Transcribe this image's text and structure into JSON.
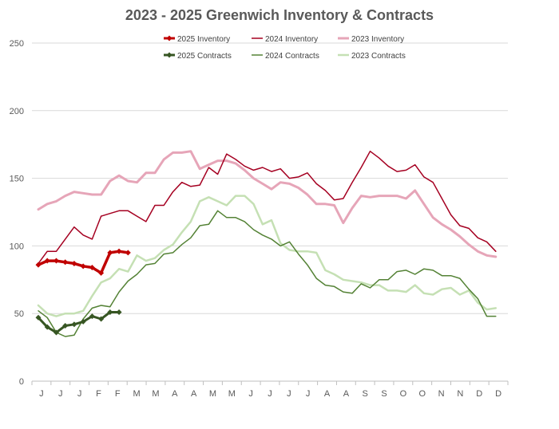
{
  "chart_data": {
    "type": "line",
    "title": "2023 - 2025 Greenwich Inventory & Contracts",
    "xlabel": "",
    "ylabel": "",
    "ylim": [
      0,
      250
    ],
    "yticks": [
      0,
      50,
      100,
      150,
      200,
      250
    ],
    "grid": true,
    "legend_position": "top",
    "categories": [
      "J",
      "J",
      "J",
      "F",
      "F",
      "M",
      "M",
      "A",
      "A",
      "M",
      "M",
      "J",
      "J",
      "J",
      "J",
      "A",
      "A",
      "S",
      "S",
      "O",
      "O",
      "N",
      "N",
      "D",
      "D"
    ],
    "x_unit": "week",
    "x_max": 52,
    "series": [
      {
        "name": "2025 Inventory",
        "color": "#c00000",
        "width": 3.5,
        "marker": "diamond",
        "x": [
          0,
          1,
          2,
          3,
          4,
          5,
          6,
          7,
          8,
          9,
          10
        ],
        "values": [
          86,
          89,
          89,
          88,
          87,
          85,
          84,
          80,
          95,
          96,
          95
        ]
      },
      {
        "name": "2024 Inventory",
        "color": "#a50021",
        "width": 1.5,
        "marker": "none",
        "x": [
          0,
          1,
          2,
          3,
          4,
          5,
          6,
          7,
          8,
          9,
          10,
          11,
          12,
          13,
          14,
          15,
          16,
          17,
          18,
          19,
          20,
          21,
          22,
          23,
          24,
          25,
          26,
          27,
          28,
          29,
          30,
          31,
          32,
          33,
          34,
          35,
          36,
          37,
          38,
          39,
          40,
          41,
          42,
          43,
          44,
          45,
          46,
          47,
          48,
          49,
          50,
          51
        ],
        "values": [
          87,
          96,
          96,
          105,
          114,
          108,
          105,
          122,
          124,
          126,
          126,
          122,
          118,
          130,
          130,
          140,
          147,
          144,
          145,
          158,
          153,
          168,
          164,
          159,
          156,
          158,
          155,
          157,
          150,
          151,
          154,
          146,
          141,
          134,
          135,
          147,
          158,
          170,
          165,
          159,
          155,
          156,
          160,
          151,
          147,
          135,
          123,
          115,
          113,
          106,
          103,
          96
        ]
      },
      {
        "name": "2023 Inventory",
        "color": "#e6a5b8",
        "width": 3,
        "marker": "none",
        "x": [
          0,
          1,
          2,
          3,
          4,
          5,
          6,
          7,
          8,
          9,
          10,
          11,
          12,
          13,
          14,
          15,
          16,
          17,
          18,
          19,
          20,
          21,
          22,
          23,
          24,
          25,
          26,
          27,
          28,
          29,
          30,
          31,
          32,
          33,
          34,
          35,
          36,
          37,
          38,
          39,
          40,
          41,
          42,
          43,
          44,
          45,
          46,
          47,
          48,
          49,
          50,
          51
        ],
        "values": [
          127,
          131,
          133,
          137,
          140,
          139,
          138,
          138,
          148,
          152,
          148,
          147,
          154,
          154,
          164,
          169,
          169,
          170,
          157,
          160,
          163,
          163,
          161,
          156,
          150,
          146,
          142,
          147,
          146,
          143,
          138,
          131,
          131,
          130,
          117,
          128,
          137,
          136,
          137,
          137,
          137,
          135,
          141,
          131,
          121,
          116,
          112,
          107,
          101,
          96,
          93,
          92
        ]
      },
      {
        "name": "2025 Contracts",
        "color": "#375623",
        "width": 3,
        "marker": "diamond",
        "x": [
          0,
          1,
          2,
          3,
          4,
          5,
          6,
          7,
          8,
          9
        ],
        "values": [
          47,
          40,
          36,
          41,
          42,
          44,
          48,
          46,
          51,
          51
        ]
      },
      {
        "name": "2024 Contracts",
        "color": "#548235",
        "width": 1.5,
        "marker": "none",
        "x": [
          0,
          1,
          2,
          3,
          4,
          5,
          6,
          7,
          8,
          9,
          10,
          11,
          12,
          13,
          14,
          15,
          16,
          17,
          18,
          19,
          20,
          21,
          22,
          23,
          24,
          25,
          26,
          27,
          28,
          29,
          30,
          31,
          32,
          33,
          34,
          35,
          36,
          37,
          38,
          39,
          40,
          41,
          42,
          43,
          44,
          45,
          46,
          47,
          48,
          49,
          50,
          51
        ],
        "values": [
          52,
          47,
          36,
          33,
          34,
          46,
          54,
          56,
          55,
          66,
          74,
          79,
          86,
          87,
          94,
          95,
          101,
          106,
          115,
          116,
          126,
          121,
          121,
          118,
          112,
          108,
          105,
          100,
          103,
          94,
          86,
          76,
          71,
          70,
          66,
          65,
          72,
          69,
          75,
          75,
          81,
          82,
          79,
          83,
          82,
          78,
          78,
          76,
          68,
          61,
          48,
          48
        ]
      },
      {
        "name": "2023 Contracts",
        "color": "#c5e0b4",
        "width": 2.5,
        "marker": "none",
        "x": [
          0,
          1,
          2,
          3,
          4,
          5,
          6,
          7,
          8,
          9,
          10,
          11,
          12,
          13,
          14,
          15,
          16,
          17,
          18,
          19,
          20,
          21,
          22,
          23,
          24,
          25,
          26,
          27,
          28,
          29,
          30,
          31,
          32,
          33,
          34,
          35,
          36,
          37,
          38,
          39,
          40,
          41,
          42,
          43,
          44,
          45,
          46,
          47,
          48,
          49,
          50,
          51
        ],
        "values": [
          56,
          50,
          48,
          50,
          50,
          52,
          63,
          73,
          76,
          83,
          81,
          93,
          89,
          91,
          97,
          101,
          110,
          118,
          133,
          136,
          133,
          130,
          137,
          137,
          131,
          116,
          119,
          102,
          97,
          96,
          96,
          95,
          82,
          79,
          75,
          74,
          73,
          71,
          71,
          67,
          67,
          66,
          71,
          65,
          64,
          68,
          69,
          64,
          67,
          58,
          53,
          54
        ]
      }
    ],
    "legend": {
      "row1": [
        "2025 Inventory",
        "2024 Inventory",
        "2023 Inventory"
      ],
      "row2": [
        "2025 Contracts",
        "2024 Contracts",
        "2023 Contracts"
      ]
    }
  }
}
